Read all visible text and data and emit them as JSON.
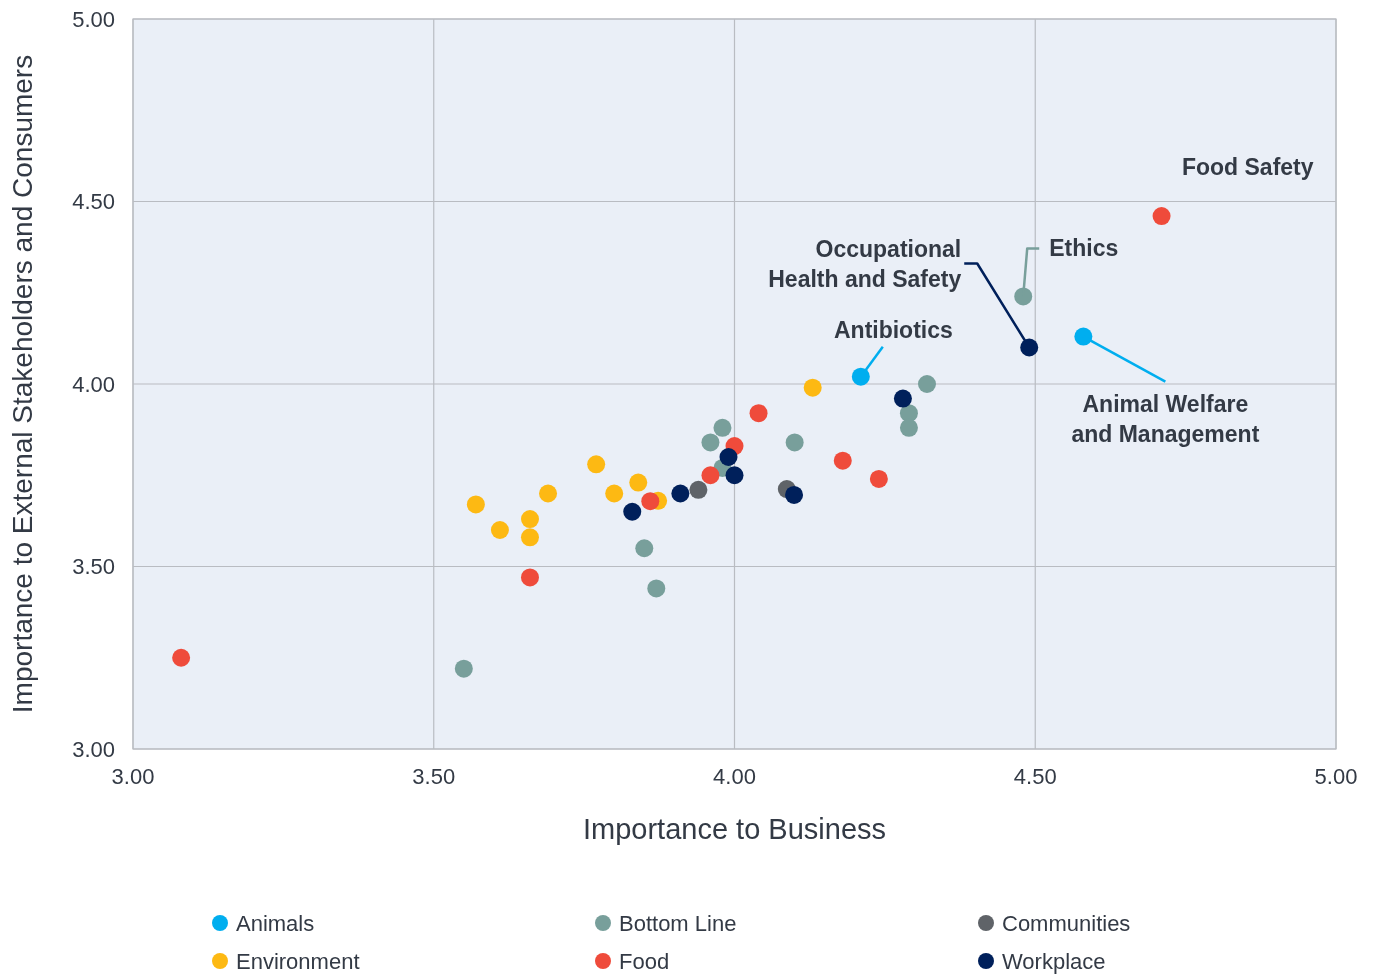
{
  "chart_data": {
    "type": "scatter",
    "xlabel": "Importance to Business",
    "ylabel": "Importance to External Stakeholders and Consumers",
    "xlim": [
      3,
      5
    ],
    "ylim": [
      3,
      5
    ],
    "xticks": [
      {
        "value": 3,
        "label": "3.00"
      },
      {
        "value": 3.5,
        "label": "3.50"
      },
      {
        "value": 4,
        "label": "4.00"
      },
      {
        "value": 4.5,
        "label": "4.50"
      },
      {
        "value": 5,
        "label": "5.00"
      }
    ],
    "yticks": [
      {
        "value": 3,
        "label": "3.00"
      },
      {
        "value": 3.5,
        "label": "3.50"
      },
      {
        "value": 4,
        "label": "4.00"
      },
      {
        "value": 4.5,
        "label": "4.50"
      },
      {
        "value": 5,
        "label": "5.00"
      }
    ],
    "grid": true,
    "legend": "bottom",
    "marker": "circle",
    "series": [
      {
        "name": "Animals",
        "color": "#00aeef",
        "x": [
          4.21,
          4.58
        ],
        "values": [
          4.02,
          4.13
        ]
      },
      {
        "name": "Bottom Line",
        "color": "#789f9b",
        "x": [
          3.55,
          3.85,
          3.87,
          3.96,
          3.98,
          3.98,
          4.1,
          4.32,
          4.29,
          4.29,
          4.48
        ],
        "values": [
          3.22,
          3.55,
          3.44,
          3.84,
          3.88,
          3.77,
          3.84,
          4.0,
          3.92,
          3.88,
          4.24
        ]
      },
      {
        "name": "Communities",
        "color": "#5f6368",
        "x": [
          3.94,
          4.087
        ],
        "values": [
          3.71,
          3.712
        ]
      },
      {
        "name": "Environment",
        "color": "#fdb913",
        "x": [
          3.57,
          3.61,
          3.66,
          3.66,
          3.69,
          3.77,
          3.8,
          3.84,
          3.873,
          4.13
        ],
        "values": [
          3.67,
          3.6,
          3.63,
          3.58,
          3.7,
          3.78,
          3.7,
          3.73,
          3.68,
          3.99
        ]
      },
      {
        "name": "Food",
        "color": "#ef4b3b",
        "x": [
          3.08,
          4.71,
          3.66,
          4.04,
          4.0,
          3.96,
          3.86,
          4.18,
          4.24
        ],
        "values": [
          3.25,
          4.46,
          3.47,
          3.92,
          3.83,
          3.75,
          3.679,
          3.79,
          3.74
        ]
      },
      {
        "name": "Workplace",
        "color": "#00205b",
        "x": [
          3.83,
          3.91,
          3.99,
          4.0,
          4.099,
          4.28,
          4.49
        ],
        "values": [
          3.65,
          3.7,
          3.8,
          3.75,
          3.696,
          3.96,
          4.1
        ]
      }
    ],
    "annotations": [
      {
        "text": "Food Safety",
        "x": 4.71,
        "y": 4.46
      },
      {
        "text": "Occupational Health and Safety",
        "x": 4.49,
        "y": 4.1
      },
      {
        "text": "Ethics",
        "x": 4.48,
        "y": 4.24
      },
      {
        "text": "Antibiotics",
        "x": 4.21,
        "y": 4.02
      },
      {
        "text": "Animal Welfare and Management",
        "x": 4.58,
        "y": 4.13
      }
    ]
  }
}
